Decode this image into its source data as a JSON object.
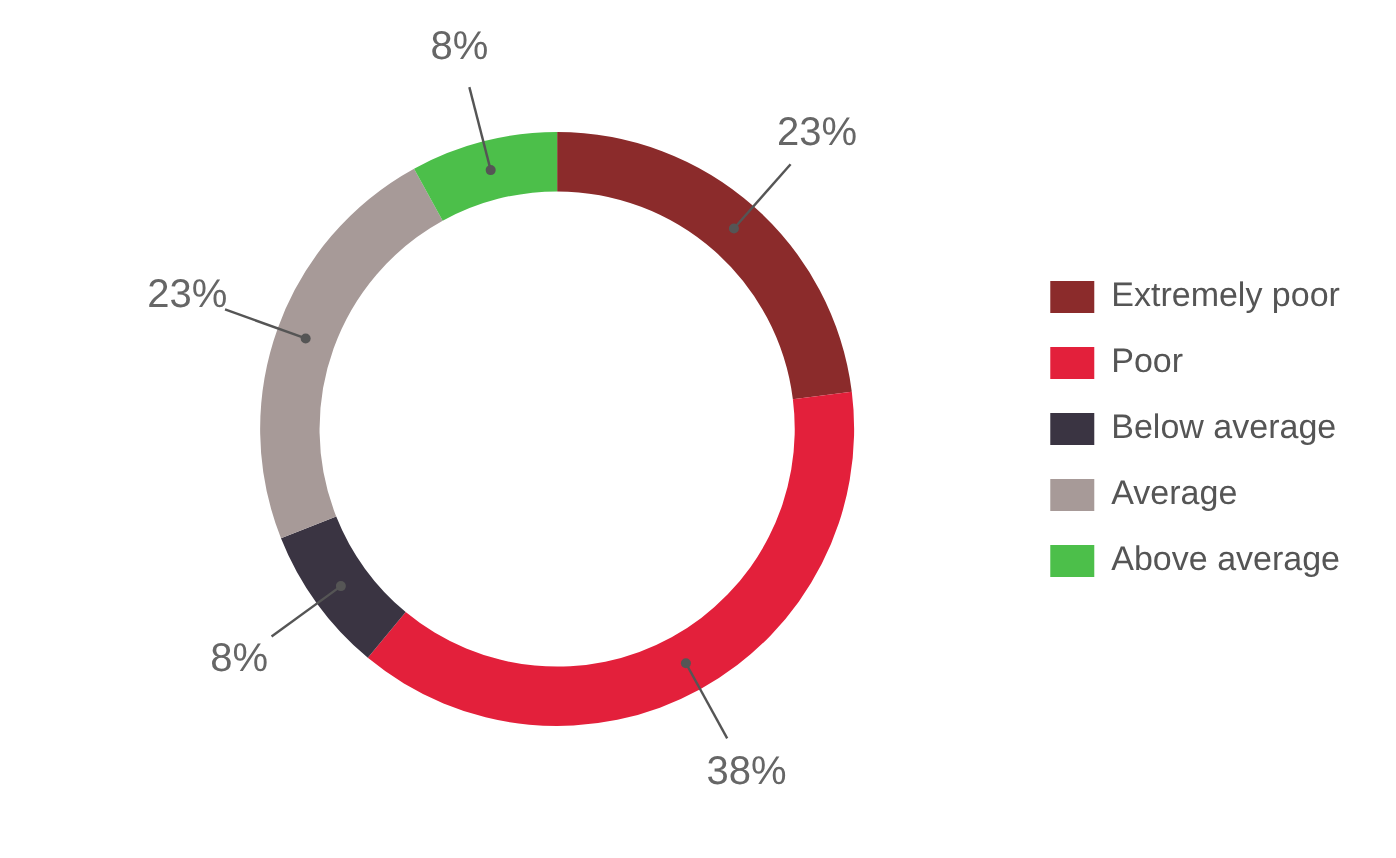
{
  "chart_data": {
    "type": "donut",
    "categories": [
      "Extremely poor",
      "Poor",
      "Below average",
      "Average",
      "Above average"
    ],
    "values": [
      23,
      38,
      8,
      23,
      8
    ],
    "colors": [
      "#8b2b2b",
      "#e3203b",
      "#3a3442",
      "#a79a98",
      "#4cbf4a"
    ],
    "value_labels": [
      "23%",
      "38%",
      "8%",
      "23%",
      "8%"
    ],
    "legend": "right"
  }
}
